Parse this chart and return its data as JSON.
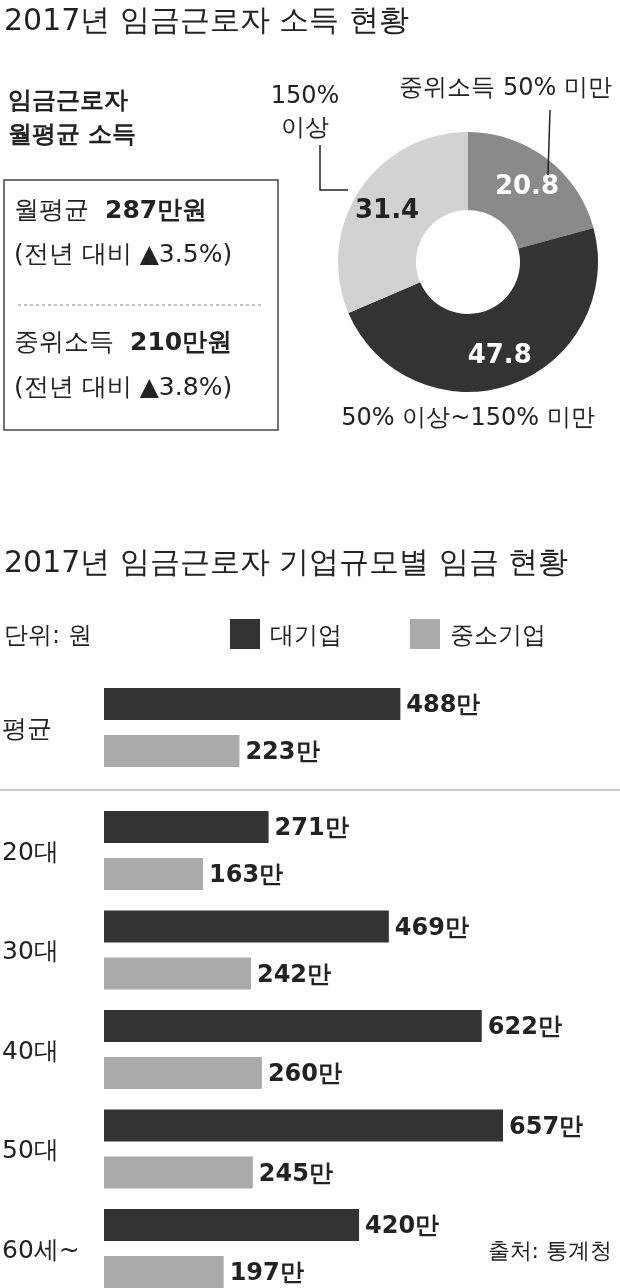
{
  "chart_data": [
    {
      "type": "donut",
      "title": "2017년 임금근로자 소득 현황",
      "categories": [
        "중위소득 50% 미만",
        "50% 이상~150% 미만",
        "150% 이상"
      ],
      "values": [
        20.8,
        47.8,
        31.4
      ],
      "colors": [
        "#8a8a8a",
        "#333333",
        "#d2d2d2"
      ],
      "data_labels": true
    },
    {
      "type": "other",
      "title": "임금근로자 월평균 소득",
      "annotations": [
        "월평균",
        "287만원",
        "(전년 대비 ▲3.5%)",
        "중위소득",
        "210만원",
        "(전년 대비 ▲3.8%)"
      ]
    },
    {
      "type": "bar",
      "orientation": "horizontal",
      "title": "2017년 임금근로자 기업규모별 임금 현황",
      "categories": [
        "평균",
        "20대",
        "30대",
        "40대",
        "50대",
        "60세~"
      ],
      "series": [
        {
          "name": "대기업",
          "color": "#333333",
          "values": [
            488,
            271,
            469,
            622,
            657,
            420
          ],
          "value_labels": [
            "488만",
            "271만",
            "469만",
            "622만",
            "657만",
            "420만"
          ]
        },
        {
          "name": "중소기업",
          "color": "#aaaaaa",
          "values": [
            223,
            163,
            242,
            260,
            245,
            197
          ],
          "value_labels": [
            "223만",
            "163만",
            "242만",
            "260만",
            "245만",
            "197만"
          ]
        }
      ],
      "legend": "top",
      "tick_labels": "y",
      "annotations": [
        "단위: 원",
        "출처: 통계청"
      ]
    }
  ]
}
